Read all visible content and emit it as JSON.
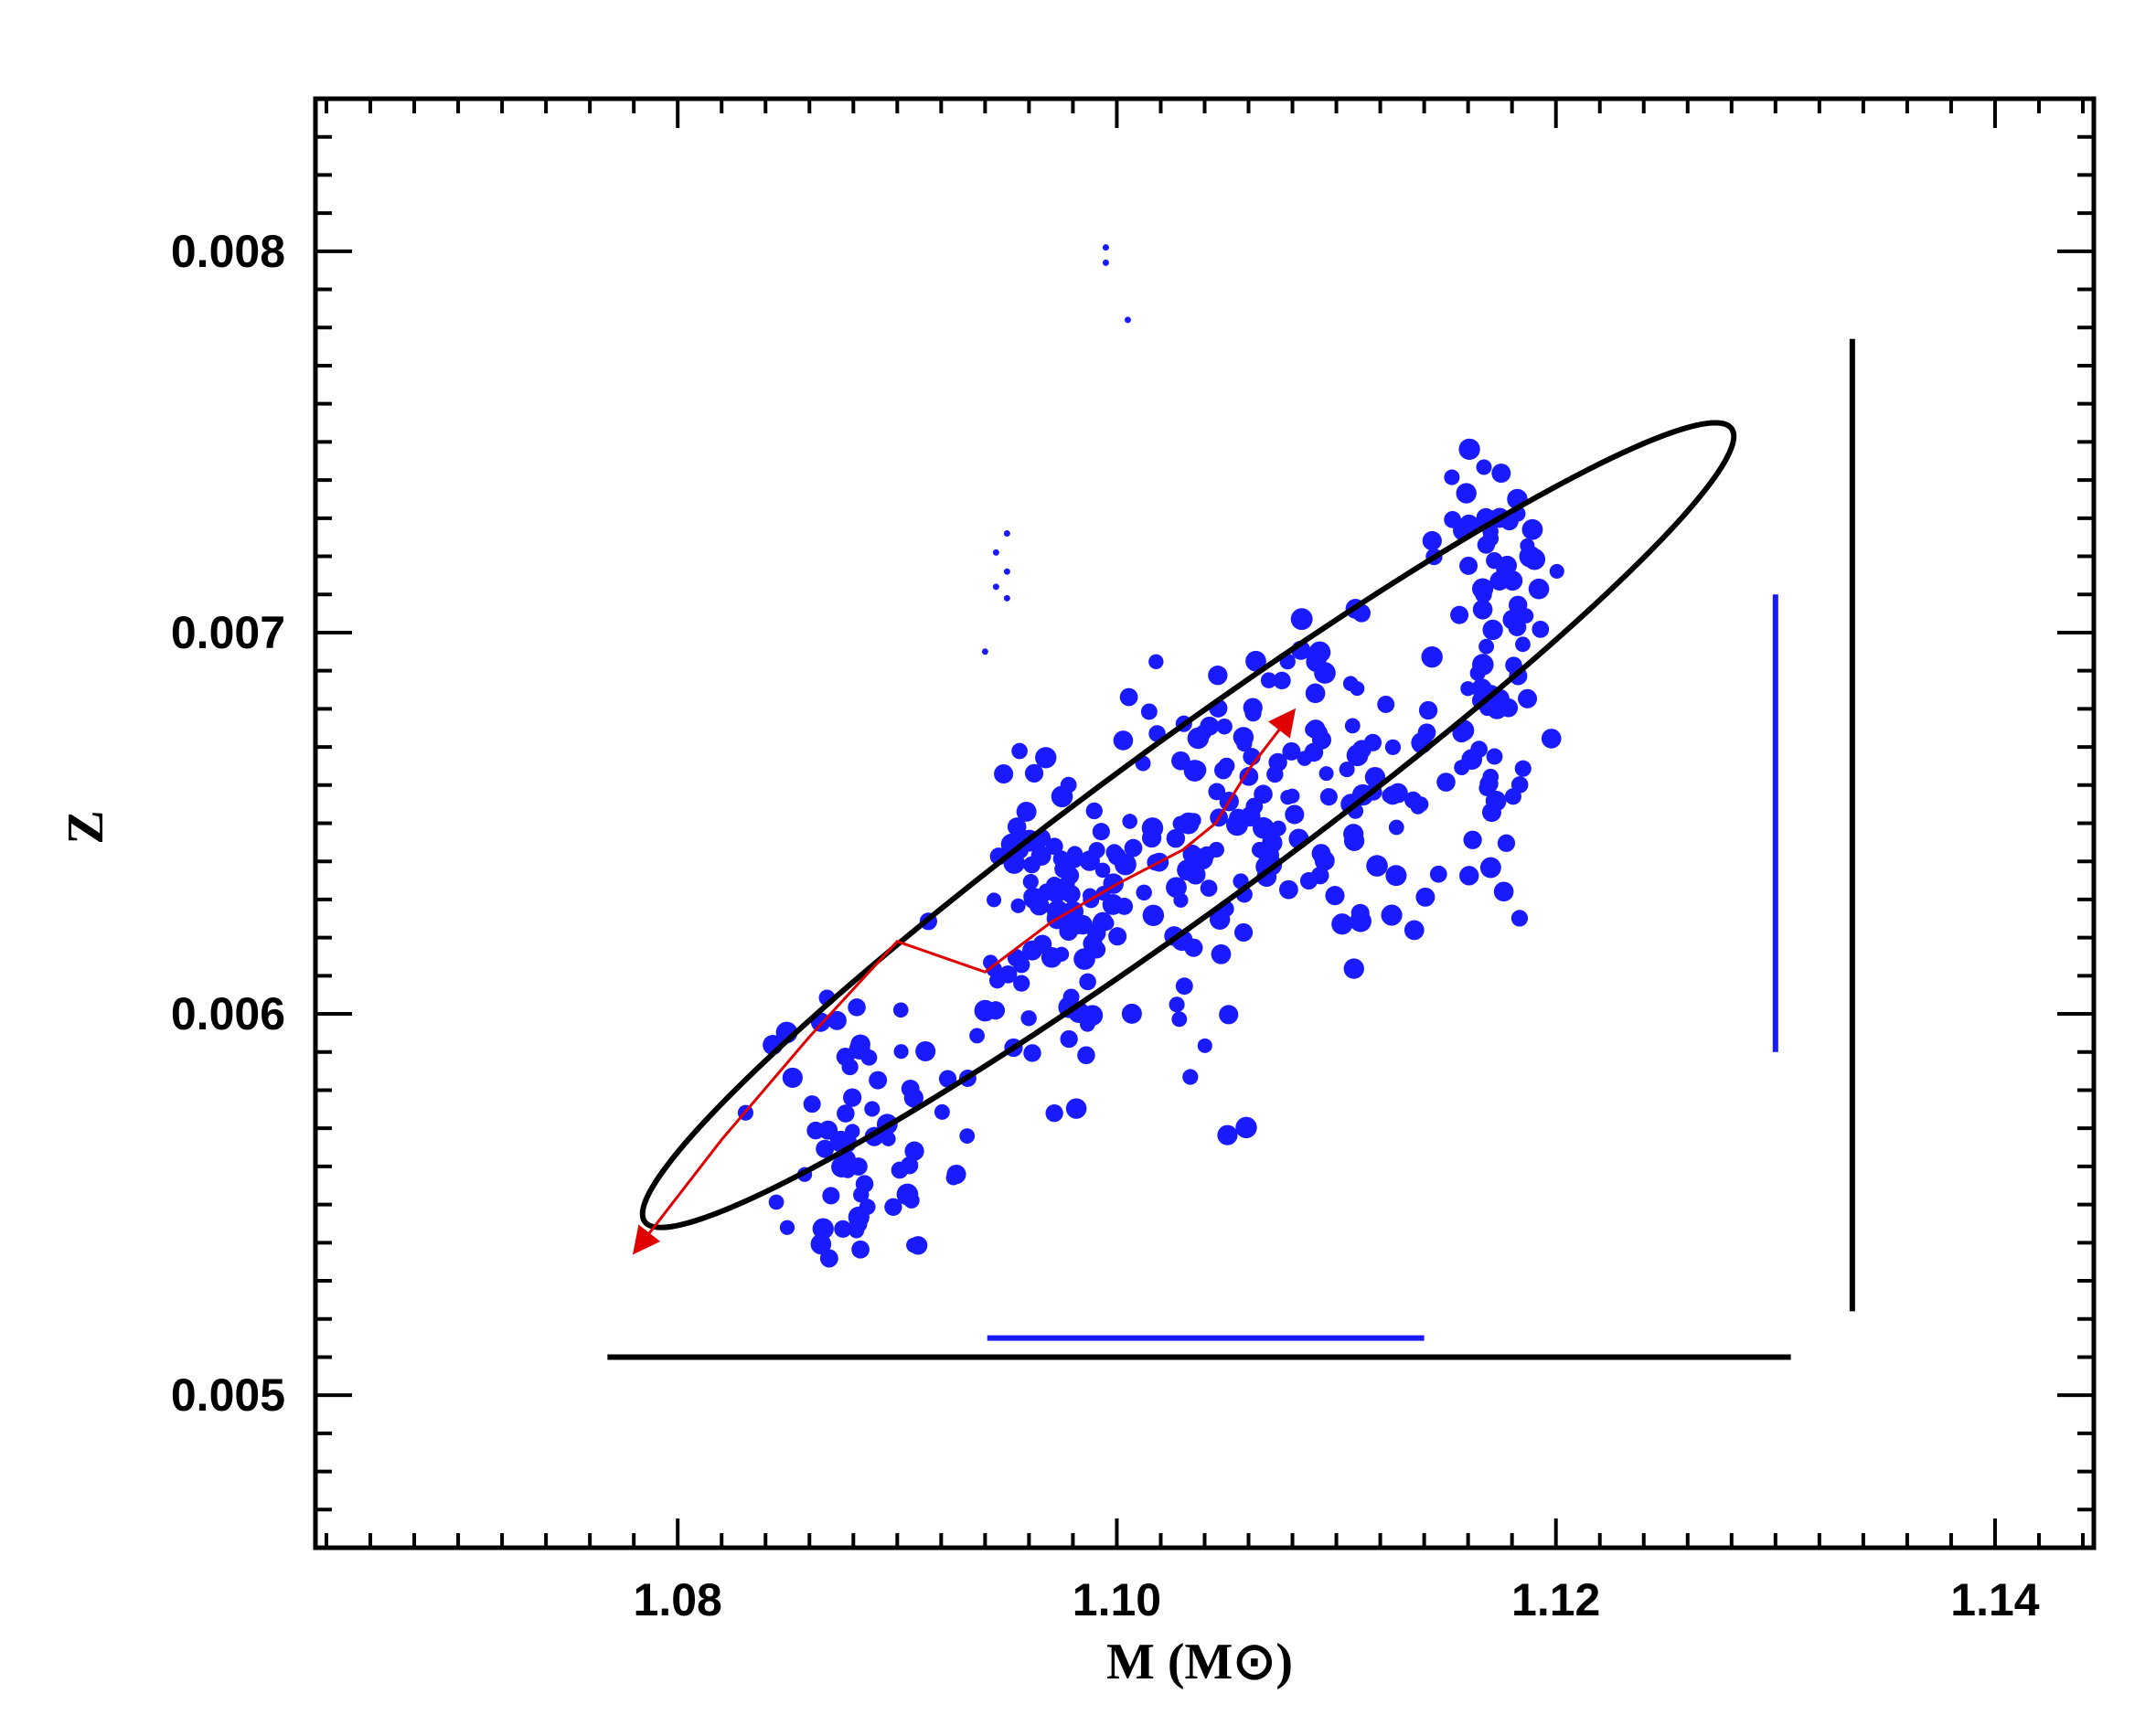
{
  "chart_data": {
    "type": "scatter",
    "title": "",
    "xlabel": "M (M⊙)",
    "ylabel": "Z",
    "xlim": [
      1.0635,
      1.1445
    ],
    "ylim": [
      0.0046,
      0.0084
    ],
    "x_ticks": [
      "1.08",
      "1.10",
      "1.12",
      "1.14"
    ],
    "y_ticks": [
      "0.005",
      "0.006",
      "0.007",
      "0.008"
    ],
    "grid": false,
    "legend": "none",
    "colors": {
      "points": "#1a1aff",
      "ellipse": "#000000",
      "track": "#e00000",
      "axes": "#000000"
    },
    "ellipse": {
      "cx": 1.1032,
      "cy": 0.00655,
      "points": [
        [
          1.0785,
          0.00543
        ],
        [
          1.0785,
          0.00548
        ],
        [
          1.1275,
          0.00757
        ],
        [
          1.1283,
          0.0075
        ],
        [
          1.1032,
          0.0061
        ]
      ]
    },
    "error_bars": [
      {
        "name": "black-horizontal",
        "color": "#000000",
        "x": [
          1.0768,
          1.1307
        ],
        "y": [
          0.0051,
          0.0051
        ]
      },
      {
        "name": "blue-horizontal",
        "color": "#1a1aff",
        "x": [
          1.0941,
          1.114
        ],
        "y": [
          0.00515,
          0.00515
        ]
      },
      {
        "name": "black-vertical",
        "color": "#000000",
        "x": [
          1.1335,
          1.1335
        ],
        "y": [
          0.00522,
          0.00777
        ]
      },
      {
        "name": "blue-vertical",
        "color": "#1a1aff",
        "x": [
          1.13,
          1.13
        ],
        "y": [
          0.0059,
          0.0071
        ]
      }
    ],
    "track": [
      [
        1.0781,
        0.00538
      ],
      [
        1.082,
        0.00567
      ],
      [
        1.086,
        0.00594
      ],
      [
        1.09,
        0.00619
      ],
      [
        1.094,
        0.00611
      ],
      [
        1.097,
        0.00624
      ],
      [
        1.1,
        0.00634
      ],
      [
        1.103,
        0.00643
      ],
      [
        1.1045,
        0.0065
      ],
      [
        1.106,
        0.00664
      ],
      [
        1.108,
        0.00679
      ]
    ],
    "faint_points": [
      [
        1.095,
        0.00726
      ],
      [
        1.0945,
        0.00721
      ],
      [
        1.095,
        0.00716
      ],
      [
        1.0945,
        0.00712
      ],
      [
        1.095,
        0.00709
      ],
      [
        1.094,
        0.00695
      ],
      [
        1.1005,
        0.00782
      ],
      [
        1.0995,
        0.00801
      ],
      [
        1.0995,
        0.00797
      ]
    ],
    "clusters": [
      {
        "cx": 1.0885,
        "cy": 0.00568,
        "sx": 0.002,
        "sy": 0.00018,
        "r": 0.0,
        "n": 64
      },
      {
        "cx": 1.0955,
        "cy": 0.00612,
        "sx": 0.002,
        "sy": 0.00018,
        "r": 0.0,
        "n": 22
      },
      {
        "cx": 1.0975,
        "cy": 0.0063,
        "sx": 0.0016,
        "sy": 0.0002,
        "r": 0.0,
        "n": 75
      },
      {
        "cx": 1.103,
        "cy": 0.0064,
        "sx": 0.0025,
        "sy": 0.00025,
        "r": 0.0,
        "n": 58
      },
      {
        "cx": 1.108,
        "cy": 0.0066,
        "sx": 0.0022,
        "sy": 0.0002,
        "r": 0.0,
        "n": 70
      },
      {
        "cx": 1.1125,
        "cy": 0.0065,
        "sx": 0.0018,
        "sy": 0.0002,
        "r": 0.0,
        "n": 22
      },
      {
        "cx": 1.117,
        "cy": 0.00675,
        "sx": 0.0012,
        "sy": 0.00028,
        "r": 0.0,
        "n": 50
      },
      {
        "cx": 1.1175,
        "cy": 0.00715,
        "sx": 0.0012,
        "sy": 0.00016,
        "r": 0.0,
        "n": 34
      }
    ]
  }
}
